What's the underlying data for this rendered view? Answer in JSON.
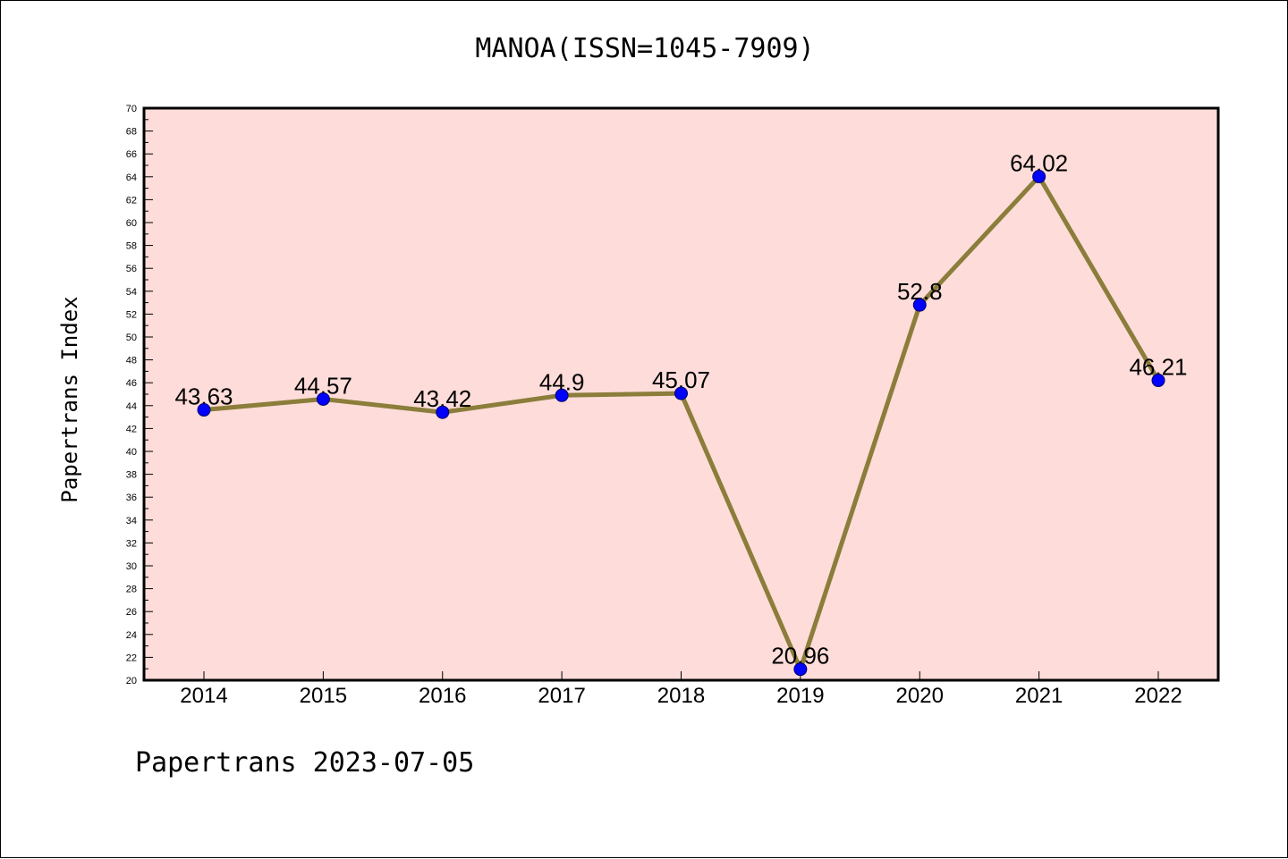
{
  "title": "MANOA(ISSN=1045-7909)",
  "footer": "Papertrans 2023-07-05",
  "colors": {
    "plot_background": "#fddcd9",
    "line": "#8b7d3a",
    "marker": "#0000ff"
  },
  "chart_data": {
    "type": "line",
    "title": "MANOA(ISSN=1045-7909)",
    "xlabel": "",
    "ylabel": "Papertrans Index",
    "categories": [
      "2014",
      "2015",
      "2016",
      "2017",
      "2018",
      "2019",
      "2020",
      "2021",
      "2022"
    ],
    "series": [
      {
        "values": [
          43.63,
          44.57,
          43.42,
          44.9,
          45.07,
          20.96,
          52.8,
          64.02,
          46.21
        ],
        "labels": [
          "43.63",
          "44.57",
          "43.42",
          "44.9",
          "45.07",
          "20.96",
          "52.8",
          "64.02",
          "46.21"
        ]
      }
    ],
    "ylim": [
      20,
      70
    ],
    "ytick_step": 2,
    "grid": false,
    "legend": "none"
  }
}
